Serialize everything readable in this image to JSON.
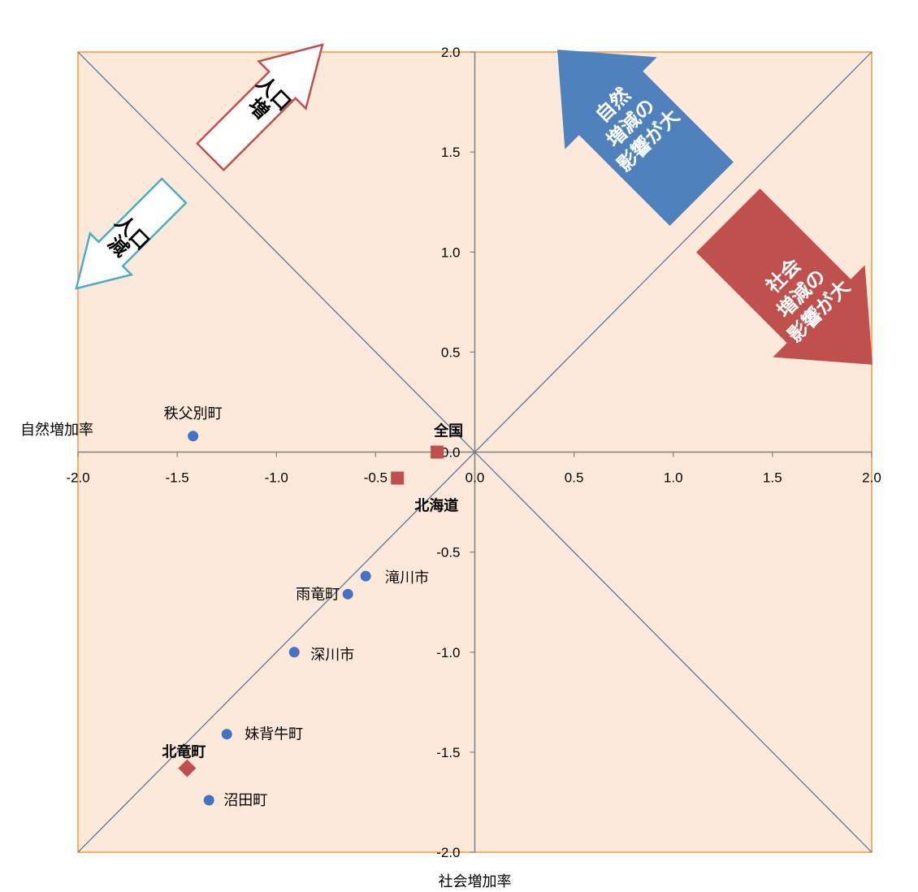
{
  "chart_data": {
    "type": "scatter",
    "title": "",
    "xlabel": "社会増加率",
    "ylabel": "自然増加率",
    "xlim": [
      -2.0,
      2.0
    ],
    "ylim": [
      -2.0,
      2.0
    ],
    "x_ticks": [
      "-2.0",
      "-1.5",
      "-1.0",
      "-0.5",
      "0.0",
      "0.5",
      "1.0",
      "1.5",
      "2.0"
    ],
    "y_ticks": [
      "2.0",
      "1.5",
      "1.0",
      "0.5",
      "0.0",
      "-0.5",
      "-1.0",
      "-1.5",
      "-2.0"
    ],
    "grid": false,
    "legend": "none",
    "diagonals": [
      "y = x",
      "y = -x"
    ],
    "points": [
      {
        "label": "秩父別町",
        "x": -1.42,
        "y": 0.08,
        "marker": "circle",
        "color": "#4472C4",
        "bold": false
      },
      {
        "label": "全国",
        "x": -0.19,
        "y": 0.0,
        "marker": "square",
        "color": "#C0504D",
        "bold": true
      },
      {
        "label": "北海道",
        "x": -0.39,
        "y": -0.13,
        "marker": "square",
        "color": "#C0504D",
        "bold": true
      },
      {
        "label": "滝川市",
        "x": -0.55,
        "y": -0.62,
        "marker": "circle",
        "color": "#4472C4",
        "bold": false
      },
      {
        "label": "雨竜町",
        "x": -0.64,
        "y": -0.71,
        "marker": "circle",
        "color": "#4472C4",
        "bold": false
      },
      {
        "label": "深川市",
        "x": -0.91,
        "y": -1.0,
        "marker": "circle",
        "color": "#4472C4",
        "bold": false
      },
      {
        "label": "妹背牛町",
        "x": -1.25,
        "y": -1.41,
        "marker": "circle",
        "color": "#4472C4",
        "bold": false
      },
      {
        "label": "北竜町",
        "x": -1.45,
        "y": -1.58,
        "marker": "diamond",
        "color": "#C0504D",
        "bold": true
      },
      {
        "label": "沼田町",
        "x": -1.34,
        "y": -1.74,
        "marker": "circle",
        "color": "#4472C4",
        "bold": false
      }
    ],
    "annotations": [
      {
        "text_lines": [
          "人口",
          "増"
        ],
        "style": "outline-arrow",
        "direction": "up-right",
        "border": "#C0504D"
      },
      {
        "text_lines": [
          "人口",
          "減"
        ],
        "style": "outline-arrow",
        "direction": "down-left",
        "border": "#4BACC6"
      },
      {
        "text_lines": [
          "自然",
          "増減",
          "の",
          "影響",
          "が",
          "大"
        ],
        "style": "filled-arrow",
        "direction": "up-left",
        "fill": "#4F81BD"
      },
      {
        "text_lines": [
          "社会",
          "増減",
          "の",
          "影響",
          "が",
          "大"
        ],
        "style": "filled-arrow",
        "direction": "down-right",
        "fill": "#C0504D"
      }
    ]
  },
  "colors": {
    "plot_background": "#FDE9D9",
    "plot_border": "#F79646",
    "axis": "#808080",
    "diagonal": "#4F6D9A"
  }
}
